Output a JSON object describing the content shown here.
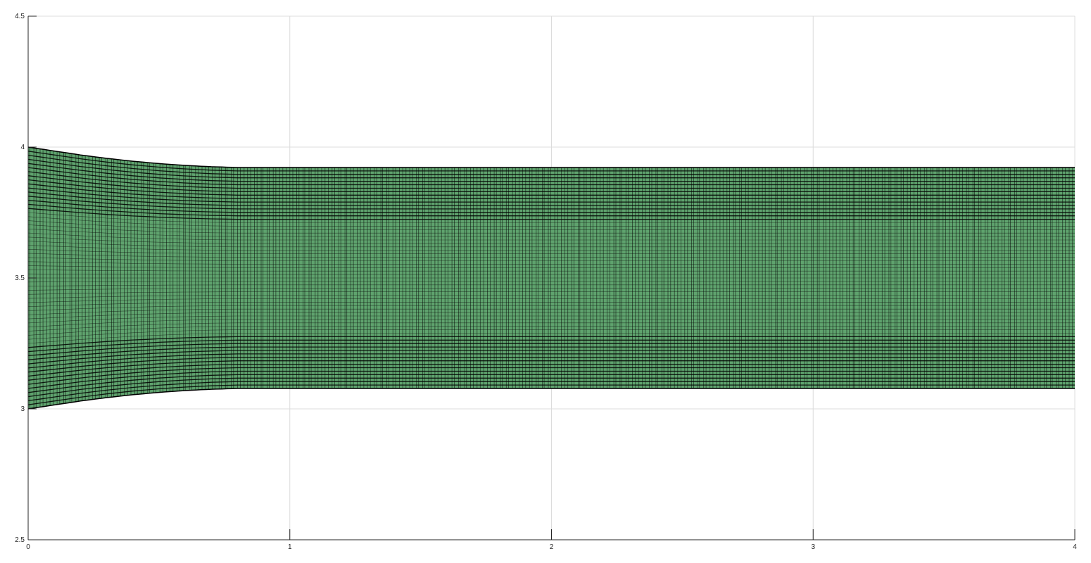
{
  "chart_data": {
    "type": "area",
    "title": "",
    "xlabel": "",
    "ylabel": "",
    "xlim": [
      0,
      4
    ],
    "ylim": [
      2.5,
      4.5
    ],
    "xticks": [
      0,
      1,
      2,
      3,
      4
    ],
    "xtick_labels": [
      "0",
      "1",
      "2",
      "3",
      "4"
    ],
    "yticks": [
      2.5,
      3,
      3.5,
      4,
      4.5
    ],
    "ytick_labels": [
      "2.5",
      "3",
      "3.5",
      "4",
      "4.5"
    ],
    "grid": true,
    "legend": "none",
    "band": {
      "x": [
        0,
        0.1,
        0.2,
        0.3,
        0.4,
        0.5,
        0.6,
        0.7,
        0.8,
        1.0,
        1.5,
        2.0,
        3.0,
        4.0
      ],
      "upper": [
        4.0,
        3.985,
        3.97,
        3.957,
        3.946,
        3.937,
        3.93,
        3.925,
        3.922,
        3.922,
        3.922,
        3.922,
        3.922,
        3.922
      ],
      "lower": [
        3.0,
        3.015,
        3.03,
        3.043,
        3.054,
        3.063,
        3.07,
        3.075,
        3.078,
        3.078,
        3.078,
        3.078,
        3.078,
        3.078
      ],
      "inner_upper": [
        3.75,
        3.745,
        3.74,
        3.735,
        3.73,
        3.727,
        3.725,
        3.723,
        3.722,
        3.722,
        3.722,
        3.722,
        3.722,
        3.722
      ],
      "inner_lower": [
        3.25,
        3.255,
        3.26,
        3.265,
        3.27,
        3.273,
        3.275,
        3.277,
        3.278,
        3.278,
        3.278,
        3.278,
        3.278,
        3.278
      ]
    },
    "colors": {
      "fill": "#5fa36e",
      "mesh": "#000000",
      "grid": "#dcdcdc",
      "axis": "#262626"
    }
  }
}
